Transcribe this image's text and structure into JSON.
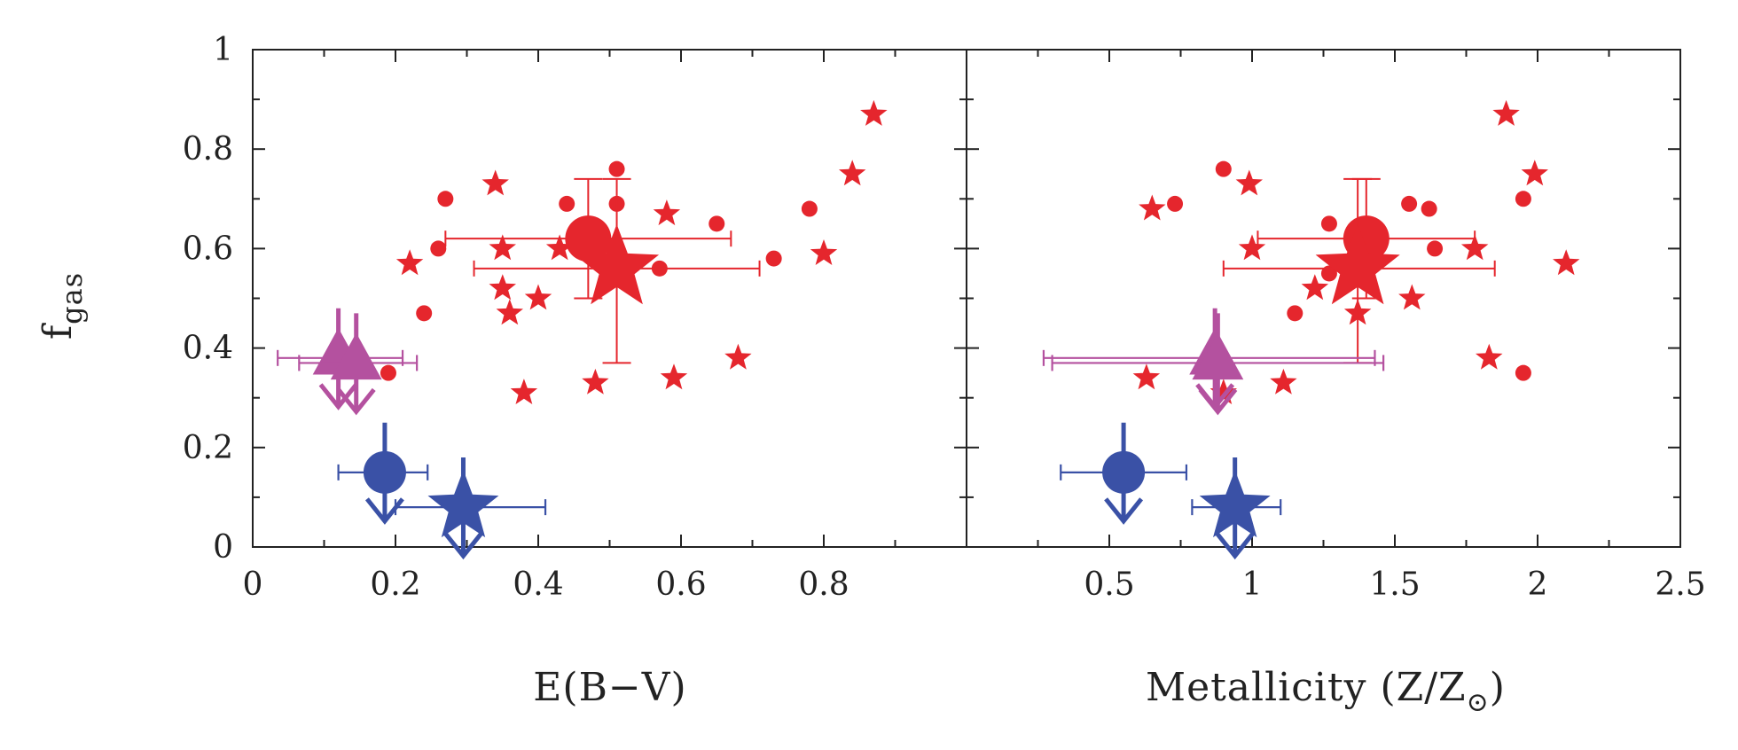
{
  "colors": {
    "red": "#e5262d",
    "blue": "#3a51a6",
    "purple": "#b4519f",
    "axis": "#222222"
  },
  "chart_data": {
    "type": "scatter",
    "ylabel_main": "f",
    "ylabel_sub": "gas",
    "y_range": [
      0,
      1
    ],
    "y_ticks": [
      "0",
      "0.2",
      "0.4",
      "0.6",
      "0.8",
      "1"
    ],
    "panels": [
      {
        "id": "ebv",
        "xlabel": "E(B−V)",
        "x_range": [
          0,
          1
        ],
        "x_ticks": [
          "0",
          "0.2",
          "0.4",
          "0.6",
          "0.8"
        ],
        "red_stars": [
          [
            0.22,
            0.57
          ],
          [
            0.34,
            0.73
          ],
          [
            0.35,
            0.6
          ],
          [
            0.35,
            0.52
          ],
          [
            0.36,
            0.47
          ],
          [
            0.4,
            0.5
          ],
          [
            0.43,
            0.6
          ],
          [
            0.38,
            0.31
          ],
          [
            0.48,
            0.33
          ],
          [
            0.58,
            0.67
          ],
          [
            0.59,
            0.34
          ],
          [
            0.68,
            0.38
          ],
          [
            0.8,
            0.59
          ],
          [
            0.84,
            0.75
          ],
          [
            0.87,
            0.87
          ]
        ],
        "red_dots": [
          [
            0.27,
            0.7
          ],
          [
            0.26,
            0.6
          ],
          [
            0.24,
            0.47
          ],
          [
            0.19,
            0.35
          ],
          [
            0.44,
            0.69
          ],
          [
            0.51,
            0.76
          ],
          [
            0.51,
            0.69
          ],
          [
            0.57,
            0.56
          ],
          [
            0.65,
            0.65
          ],
          [
            0.73,
            0.58
          ],
          [
            0.78,
            0.68
          ]
        ],
        "means": [
          {
            "shape": "circle",
            "color": "red",
            "x": 0.47,
            "y": 0.62,
            "xerr": [
              0.27,
              0.67
            ],
            "yerr": [
              0.5,
              0.74
            ],
            "limit": "none"
          },
          {
            "shape": "star",
            "color": "red",
            "x": 0.51,
            "y": 0.56,
            "xerr": [
              0.31,
              0.71
            ],
            "yerr": [
              0.37,
              0.74
            ],
            "limit": "none"
          },
          {
            "shape": "triangle",
            "color": "purple",
            "x": 0.12,
            "y": 0.38,
            "xerr": [
              0.035,
              0.21
            ],
            "yerr": [
              0.38,
              0.48
            ],
            "limit": "upper"
          },
          {
            "shape": "triangle",
            "color": "purple",
            "x": 0.145,
            "y": 0.37,
            "xerr": [
              0.065,
              0.23
            ],
            "yerr": [
              0.37,
              0.47
            ],
            "limit": "upper"
          },
          {
            "shape": "circle",
            "color": "blue",
            "x": 0.185,
            "y": 0.15,
            "xerr": [
              0.12,
              0.245
            ],
            "yerr": [
              0.15,
              0.25
            ],
            "limit": "upper"
          },
          {
            "shape": "star",
            "color": "blue",
            "x": 0.295,
            "y": 0.08,
            "xerr": [
              0.2,
              0.41
            ],
            "yerr": [
              0.08,
              0.18
            ],
            "limit": "upper"
          }
        ]
      },
      {
        "id": "metallicity",
        "xlabel": "Metallicity (Z/Z",
        "xlabel_sub": "⊙",
        "xlabel_end": ")",
        "x_range": [
          0,
          2.5
        ],
        "x_ticks": [
          "0.5",
          "1",
          "1.5",
          "2",
          "2.5"
        ],
        "red_stars": [
          [
            0.65,
            0.68
          ],
          [
            0.63,
            0.34
          ],
          [
            0.9,
            0.31
          ],
          [
            0.99,
            0.73
          ],
          [
            1.0,
            0.6
          ],
          [
            1.11,
            0.33
          ],
          [
            1.22,
            0.52
          ],
          [
            1.37,
            0.47
          ],
          [
            1.56,
            0.5
          ],
          [
            1.78,
            0.6
          ],
          [
            1.83,
            0.38
          ],
          [
            1.89,
            0.87
          ],
          [
            1.99,
            0.75
          ],
          [
            2.1,
            0.57
          ]
        ],
        "red_dots": [
          [
            0.73,
            0.69
          ],
          [
            0.9,
            0.76
          ],
          [
            1.15,
            0.47
          ],
          [
            1.27,
            0.55
          ],
          [
            1.27,
            0.65
          ],
          [
            1.55,
            0.69
          ],
          [
            1.62,
            0.68
          ],
          [
            1.64,
            0.6
          ],
          [
            1.95,
            0.7
          ],
          [
            1.95,
            0.35
          ]
        ],
        "means": [
          {
            "shape": "circle",
            "color": "red",
            "x": 1.4,
            "y": 0.62,
            "xerr": [
              1.02,
              1.78
            ],
            "yerr": [
              0.5,
              0.74
            ],
            "limit": "none"
          },
          {
            "shape": "star",
            "color": "red",
            "x": 1.37,
            "y": 0.56,
            "xerr": [
              0.9,
              1.85
            ],
            "yerr": [
              0.37,
              0.74
            ],
            "limit": "none"
          },
          {
            "shape": "triangle",
            "color": "purple",
            "x": 0.87,
            "y": 0.38,
            "xerr": [
              0.27,
              1.43
            ],
            "yerr": [
              0.38,
              0.48
            ],
            "limit": "upper"
          },
          {
            "shape": "triangle",
            "color": "purple",
            "x": 0.88,
            "y": 0.37,
            "xerr": [
              0.3,
              1.46
            ],
            "yerr": [
              0.37,
              0.47
            ],
            "limit": "upper"
          },
          {
            "shape": "circle",
            "color": "blue",
            "x": 0.55,
            "y": 0.15,
            "xerr": [
              0.33,
              0.77
            ],
            "yerr": [
              0.15,
              0.25
            ],
            "limit": "upper"
          },
          {
            "shape": "star",
            "color": "blue",
            "x": 0.94,
            "y": 0.08,
            "xerr": [
              0.79,
              1.1
            ],
            "yerr": [
              0.08,
              0.18
            ],
            "limit": "upper"
          }
        ]
      }
    ]
  }
}
